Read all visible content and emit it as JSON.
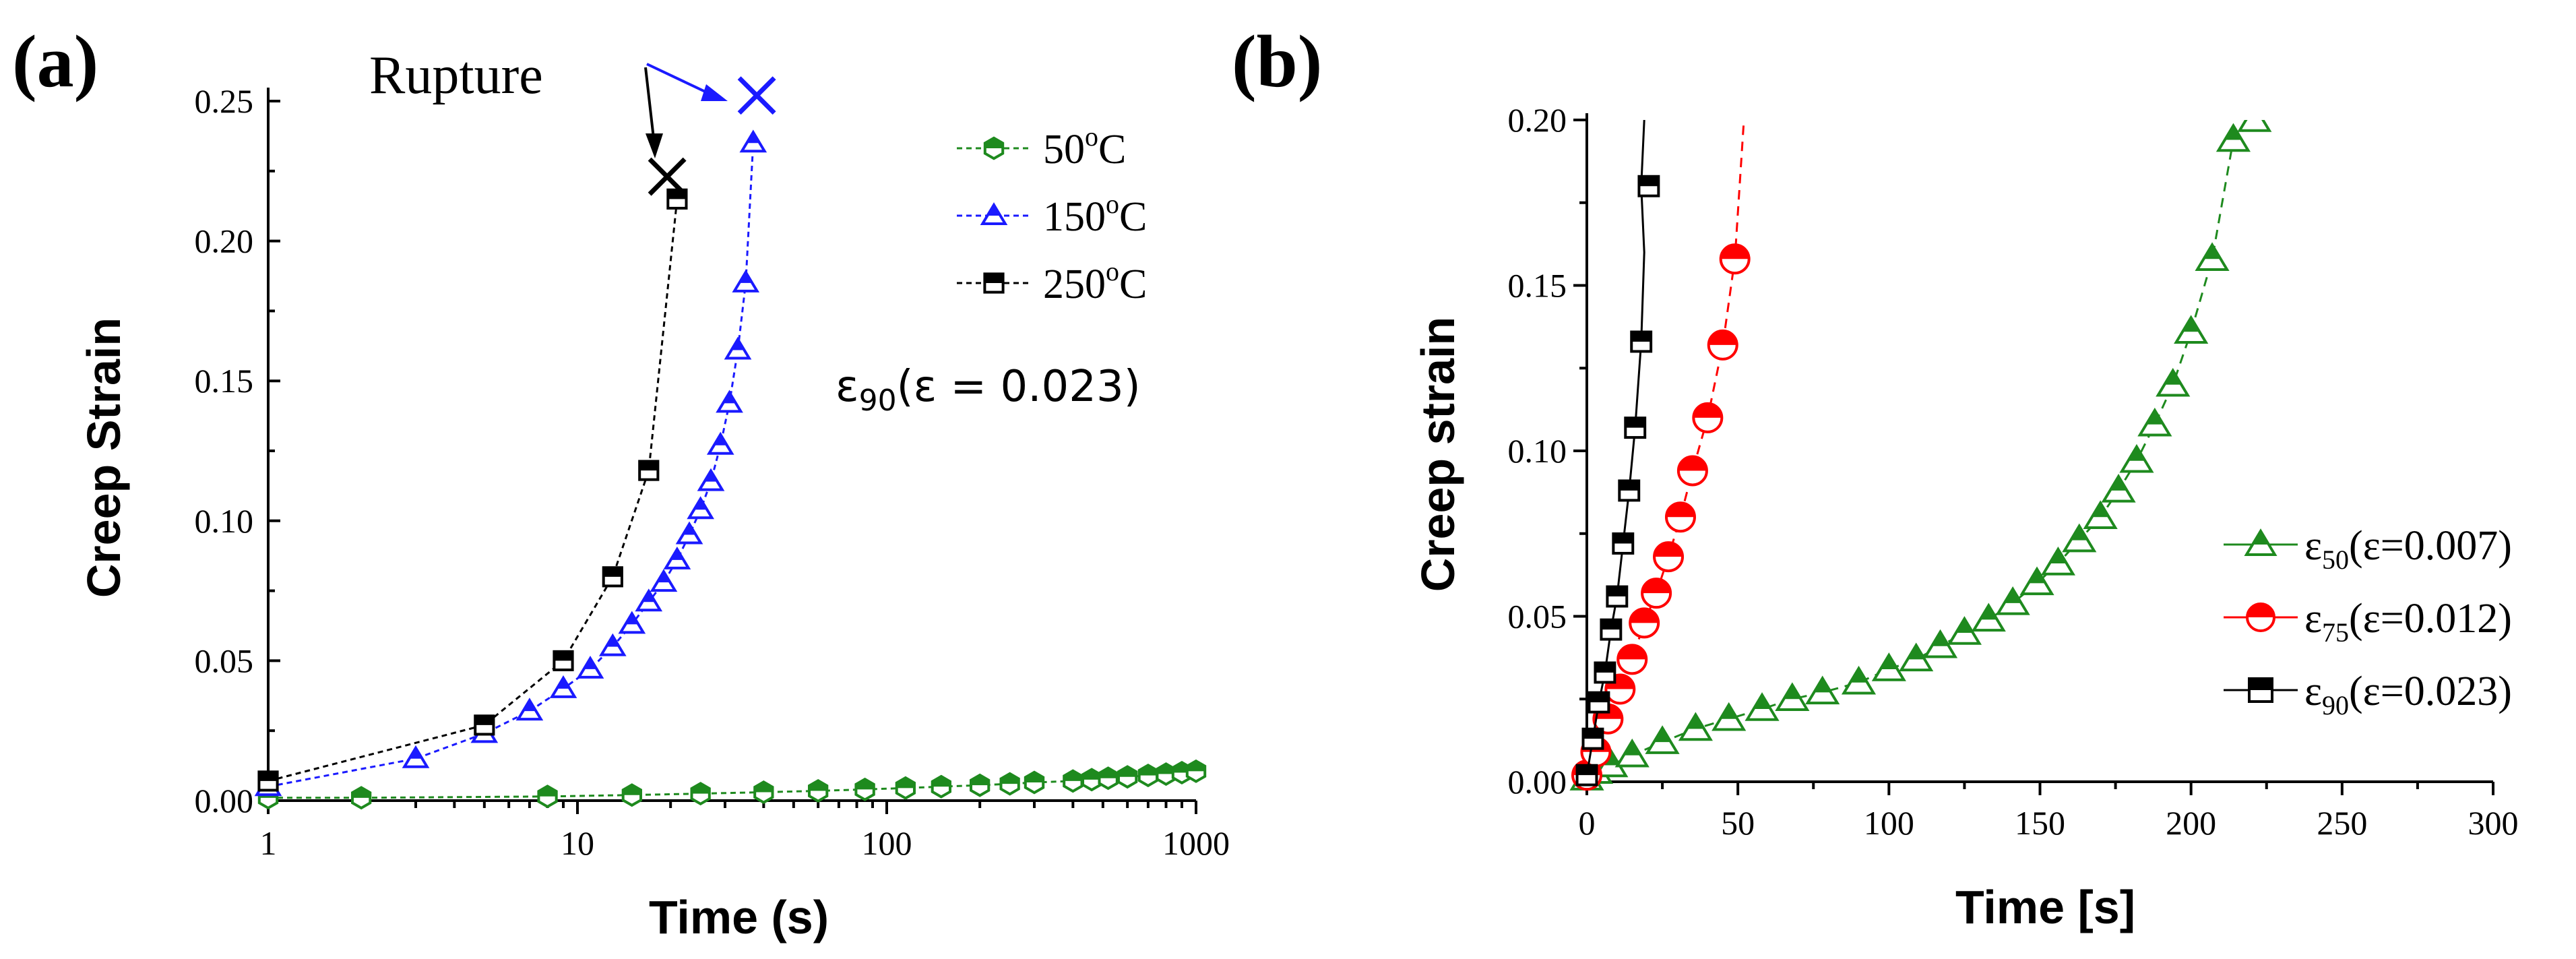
{
  "panels": {
    "a": {
      "label": "(a)"
    },
    "b": {
      "label": "(b)"
    }
  },
  "colors": {
    "green": "#1e8a1e",
    "blue": "#1a1aff",
    "black": "#000000",
    "red": "#ff0000"
  },
  "chart_data": [
    {
      "panel": "(a)",
      "type": "line",
      "xscale": "log",
      "xlabel": "Time (s)",
      "ylabel": "Creep Strain",
      "xlim": [
        1,
        1000
      ],
      "ylim": [
        0,
        0.25
      ],
      "xticks": [
        1,
        10,
        100,
        1000
      ],
      "xtick_labels": [
        "1",
        "10",
        "100",
        "1000"
      ],
      "yticks": [
        0,
        0.05,
        0.1,
        0.15,
        0.2,
        0.25
      ],
      "ytick_labels": [
        "0.00",
        "0.05",
        "0.10",
        "0.15",
        "0.20",
        "0.25"
      ],
      "legend_position": "top-right",
      "series": [
        {
          "name": "50°C",
          "label_main": "50",
          "label_sup": "o",
          "label_end": "C",
          "marker": "hexagon-half",
          "color": "#1e8a1e",
          "x": [
            1,
            2,
            8,
            15,
            25,
            40,
            60,
            85,
            115,
            150,
            200,
            250,
            300,
            400,
            460,
            520,
            600,
            700,
            800,
            900,
            1000
          ],
          "y": [
            0.001,
            0.001,
            0.0015,
            0.002,
            0.0025,
            0.003,
            0.0035,
            0.004,
            0.0045,
            0.005,
            0.0055,
            0.006,
            0.0065,
            0.007,
            0.0075,
            0.008,
            0.0085,
            0.009,
            0.0095,
            0.01,
            0.0105
          ]
        },
        {
          "name": "150°C",
          "label_main": "150",
          "label_sup": "o",
          "label_end": "C",
          "marker": "triangle-half",
          "color": "#1a1aff",
          "x": [
            1,
            3,
            5,
            7,
            9,
            11,
            13,
            15,
            17,
            19,
            21,
            23,
            25,
            27,
            29,
            31,
            33,
            35,
            37
          ],
          "y": [
            0.005,
            0.015,
            0.024,
            0.032,
            0.04,
            0.047,
            0.055,
            0.063,
            0.071,
            0.078,
            0.086,
            0.095,
            0.104,
            0.114,
            0.127,
            0.142,
            0.161,
            0.185,
            0.235
          ]
        },
        {
          "name": "250°C",
          "label_main": "250",
          "label_sup": "o",
          "label_end": "C",
          "marker": "square-half",
          "color": "#000000",
          "x": [
            1,
            5,
            9,
            13,
            17,
            21
          ],
          "y": [
            0.007,
            0.027,
            0.05,
            0.08,
            0.118,
            0.215
          ]
        }
      ],
      "rupture_points": [
        {
          "series": "150°C",
          "x": 38,
          "y": 0.252
        },
        {
          "series": "250°C",
          "x": 19.5,
          "y": 0.223
        }
      ],
      "annotations": {
        "rupture": "Rupture",
        "condition_prefix": "ε",
        "condition_sub": "90",
        "condition_suffix": "(ε = 0.023)"
      }
    },
    {
      "panel": "(b)",
      "type": "line",
      "xscale": "linear",
      "xlabel": "Time [s]",
      "ylabel": "Creep strain",
      "xlim": [
        0,
        300
      ],
      "ylim": [
        0,
        0.2
      ],
      "xticks": [
        0,
        50,
        100,
        150,
        200,
        250,
        300
      ],
      "xtick_labels": [
        "0",
        "50",
        "100",
        "150",
        "200",
        "250",
        "300"
      ],
      "yticks": [
        0,
        0.05,
        0.1,
        0.15,
        0.2
      ],
      "ytick_labels": [
        "0.00",
        "0.05",
        "0.10",
        "0.15",
        "0.20"
      ],
      "legend_position": "bottom-right",
      "series": [
        {
          "name": "ε50(ε=0.007)",
          "label_pre": "ε",
          "label_sub": "50",
          "label_post": "(ε=0.007)",
          "marker": "triangle-half",
          "color": "#1e8a1e",
          "x": [
            0,
            3,
            8,
            15,
            25,
            36,
            47,
            58,
            68,
            78,
            90,
            100,
            109,
            117,
            125,
            133,
            141,
            149,
            156,
            163,
            170,
            176,
            182,
            188,
            194,
            200,
            207,
            214,
            221
          ],
          "y": [
            0.001,
            0.003,
            0.005,
            0.008,
            0.012,
            0.016,
            0.019,
            0.022,
            0.025,
            0.027,
            0.03,
            0.034,
            0.037,
            0.041,
            0.045,
            0.049,
            0.054,
            0.06,
            0.066,
            0.073,
            0.08,
            0.088,
            0.097,
            0.108,
            0.12,
            0.136,
            0.158,
            0.194,
            0.2
          ]
        },
        {
          "name": "ε75(ε=0.012)",
          "label_pre": "ε",
          "label_sub": "75",
          "label_post": "(ε=0.012)",
          "marker": "circle-half",
          "color": "#ff0000",
          "x": [
            0,
            3,
            7,
            11,
            15,
            19,
            23,
            27,
            31,
            35,
            40,
            45,
            49
          ],
          "y": [
            0.002,
            0.009,
            0.019,
            0.028,
            0.037,
            0.048,
            0.057,
            0.068,
            0.08,
            0.094,
            0.11,
            0.132,
            0.158
          ]
        },
        {
          "name": "ε90(ε=0.023)",
          "label_pre": "ε",
          "label_sub": "90",
          "label_post": "(ε=0.023)",
          "marker": "square-half",
          "color": "#000000",
          "x": [
            0,
            2,
            4,
            6,
            8,
            10,
            12,
            14,
            16,
            18
          ],
          "y": [
            0.002,
            0.013,
            0.024,
            0.033,
            0.046,
            0.056,
            0.072,
            0.088,
            0.107,
            0.133
          ]
        }
      ]
    }
  ]
}
